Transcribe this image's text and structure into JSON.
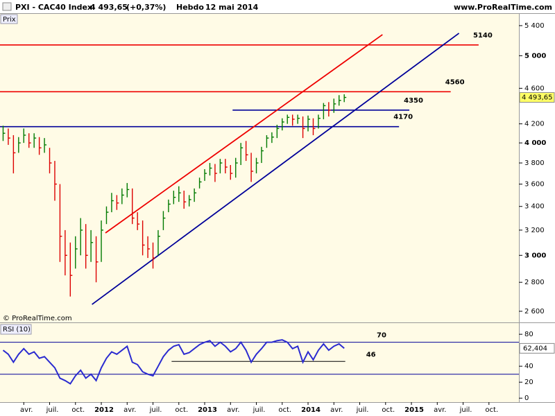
{
  "header": {
    "source": "www.ProRealTime.com",
    "watermark": "© ProRealTime.com"
  },
  "chart_data": [
    {
      "type": "ohlc",
      "title": "PXI - CAC40 Index",
      "last_label": "4 493,65",
      "change": "(+0,37%)",
      "period": "Hebdo",
      "date": "12 mai 2014",
      "panel_label": "Prix",
      "x": [
        2011.05,
        2011.1,
        2011.15,
        2011.2,
        2011.25,
        2011.3,
        2011.35,
        2011.4,
        2011.45,
        2011.5,
        2011.55,
        2011.6,
        2011.65,
        2011.7,
        2011.75,
        2011.8,
        2011.85,
        2011.9,
        2011.95,
        2012.0,
        2012.05,
        2012.1,
        2012.15,
        2012.2,
        2012.25,
        2012.3,
        2012.35,
        2012.4,
        2012.45,
        2012.5,
        2012.55,
        2012.6,
        2012.65,
        2012.7,
        2012.75,
        2012.8,
        2012.85,
        2012.9,
        2012.95,
        2013.0,
        2013.05,
        2013.1,
        2013.15,
        2013.2,
        2013.25,
        2013.3,
        2013.35,
        2013.4,
        2013.45,
        2013.5,
        2013.55,
        2013.6,
        2013.65,
        2013.7,
        2013.75,
        2013.8,
        2013.85,
        2013.9,
        2013.95,
        2014.0,
        2014.05,
        2014.1,
        2014.15,
        2014.2,
        2014.25,
        2014.3,
        2014.35
      ],
      "high": [
        4180,
        4150,
        4080,
        4060,
        4150,
        4100,
        4100,
        4060,
        4050,
        3950,
        3820,
        3600,
        3200,
        3100,
        3150,
        3300,
        3250,
        3200,
        3150,
        3280,
        3400,
        3520,
        3500,
        3560,
        3610,
        3560,
        3350,
        3280,
        3150,
        3100,
        3200,
        3360,
        3460,
        3540,
        3580,
        3540,
        3500,
        3560,
        3660,
        3740,
        3800,
        3790,
        3840,
        3840,
        3780,
        3850,
        4000,
        4020,
        3900,
        3850,
        3960,
        4080,
        4110,
        4190,
        4260,
        4300,
        4300,
        4300,
        4280,
        4290,
        4260,
        4300,
        4430,
        4440,
        4480,
        4520,
        4530
      ],
      "low": [
        4020,
        3980,
        3700,
        3900,
        4000,
        3950,
        3950,
        3880,
        3900,
        3700,
        3450,
        2950,
        2850,
        2700,
        2900,
        3000,
        2900,
        2950,
        2800,
        2950,
        3250,
        3350,
        3370,
        3420,
        3480,
        3250,
        3200,
        3000,
        2980,
        2900,
        3000,
        3200,
        3350,
        3420,
        3440,
        3380,
        3400,
        3440,
        3560,
        3630,
        3680,
        3620,
        3700,
        3700,
        3640,
        3660,
        3780,
        3820,
        3620,
        3700,
        3800,
        3950,
        4000,
        4050,
        4130,
        4200,
        4180,
        4200,
        4050,
        4120,
        4080,
        4150,
        4250,
        4280,
        4320,
        4400,
        4440
      ],
      "close": [
        4100,
        4050,
        3900,
        4000,
        4080,
        4000,
        4050,
        3950,
        3980,
        3800,
        3600,
        3150,
        3000,
        2850,
        3050,
        3200,
        3000,
        3100,
        2950,
        3200,
        3350,
        3450,
        3430,
        3500,
        3550,
        3300,
        3250,
        3080,
        3050,
        2980,
        3150,
        3300,
        3420,
        3480,
        3520,
        3440,
        3460,
        3520,
        3620,
        3700,
        3750,
        3700,
        3800,
        3760,
        3700,
        3800,
        3950,
        3880,
        3720,
        3800,
        3920,
        4050,
        4060,
        4150,
        4220,
        4270,
        4250,
        4260,
        4150,
        4250,
        4150,
        4260,
        4400,
        4350,
        4420,
        4460,
        4493.65
      ],
      "rising_color": "#007a00",
      "falling_color": "#dd0000",
      "log_scale": true,
      "xlim": [
        2011.02,
        2016.04
      ],
      "ylim": [
        2527,
        5565
      ],
      "yticks": [
        {
          "value": 2600,
          "label": "2 600"
        },
        {
          "value": 2800,
          "label": "2 800"
        },
        {
          "value": 3000,
          "label": "3 000"
        },
        {
          "value": 3200,
          "label": "3 200"
        },
        {
          "value": 3400,
          "label": "3 400"
        },
        {
          "value": 3600,
          "label": "3 600"
        },
        {
          "value": 3800,
          "label": "3 800"
        },
        {
          "value": 4000,
          "label": "4 000"
        },
        {
          "value": 4200,
          "label": "4 200"
        },
        {
          "value": 4600,
          "label": "4 600"
        },
        {
          "value": 5000,
          "label": "5 000"
        },
        {
          "value": 5400,
          "label": "5 400"
        }
      ],
      "xticks": [
        {
          "value": 2011.25,
          "label": "avr."
        },
        {
          "value": 2011.5,
          "label": "juil."
        },
        {
          "value": 2011.75,
          "label": "oct."
        },
        {
          "value": 2012,
          "label": "2012"
        },
        {
          "value": 2012.25,
          "label": "avr."
        },
        {
          "value": 2012.5,
          "label": "juil."
        },
        {
          "value": 2012.75,
          "label": "oct."
        },
        {
          "value": 2013,
          "label": "2013"
        },
        {
          "value": 2013.25,
          "label": "avr."
        },
        {
          "value": 2013.5,
          "label": "juil."
        },
        {
          "value": 2013.75,
          "label": "oct."
        },
        {
          "value": 2014,
          "label": "2014"
        },
        {
          "value": 2014.25,
          "label": "avr."
        },
        {
          "value": 2014.5,
          "label": "juil."
        },
        {
          "value": 2014.75,
          "label": "oct."
        },
        {
          "value": 2015,
          "label": "2015"
        },
        {
          "value": 2015.25,
          "label": "avr."
        },
        {
          "value": 2015.5,
          "label": "juil."
        },
        {
          "value": 2015.75,
          "label": "oct."
        }
      ],
      "levels": [
        {
          "value": 5140,
          "color": "#ee0000",
          "x": [
            2011.02,
            2015.65
          ]
        },
        {
          "value": 4560,
          "color": "#ee0000",
          "x": [
            2011.02,
            2015.38
          ]
        },
        {
          "value": 4350,
          "color": "#000099",
          "x": [
            2013.27,
            2014.98
          ]
        },
        {
          "value": 4170,
          "color": "#000099",
          "x": [
            2011.02,
            2014.88
          ]
        }
      ],
      "trendlines": [
        {
          "color": "#ee0000",
          "x": [
            2012.04,
            2014.72
          ],
          "y": [
            3177,
            5277
          ]
        },
        {
          "color": "#000099",
          "x": [
            2011.91,
            2015.46
          ],
          "y": [
            2646,
            5296
          ]
        }
      ]
    },
    {
      "type": "rsi",
      "title": "RSI (10)",
      "color": "#2b2bd0",
      "last_label": "62,404",
      "values": [
        60,
        55,
        45,
        55,
        62,
        55,
        58,
        50,
        52,
        45,
        38,
        25,
        22,
        18,
        28,
        35,
        25,
        30,
        22,
        38,
        50,
        58,
        55,
        60,
        65,
        45,
        42,
        33,
        30,
        28,
        40,
        52,
        60,
        65,
        67,
        55,
        57,
        62,
        67,
        70,
        72,
        65,
        70,
        65,
        58,
        62,
        70,
        60,
        45,
        55,
        62,
        70,
        70,
        72,
        73,
        70,
        62,
        65,
        45,
        58,
        48,
        60,
        68,
        60,
        65,
        68,
        62.404
      ],
      "ylim": [
        -5,
        94
      ],
      "yticks": [
        0,
        20,
        40,
        80
      ],
      "levels": [
        {
          "value": 70,
          "color": "#000099",
          "show_label": true
        },
        {
          "value": 30,
          "color": "#000099",
          "show_label": false
        },
        {
          "value": 46,
          "color": "#000000",
          "x": [
            2012.68,
            2014.36
          ],
          "show_label": true
        }
      ]
    }
  ]
}
